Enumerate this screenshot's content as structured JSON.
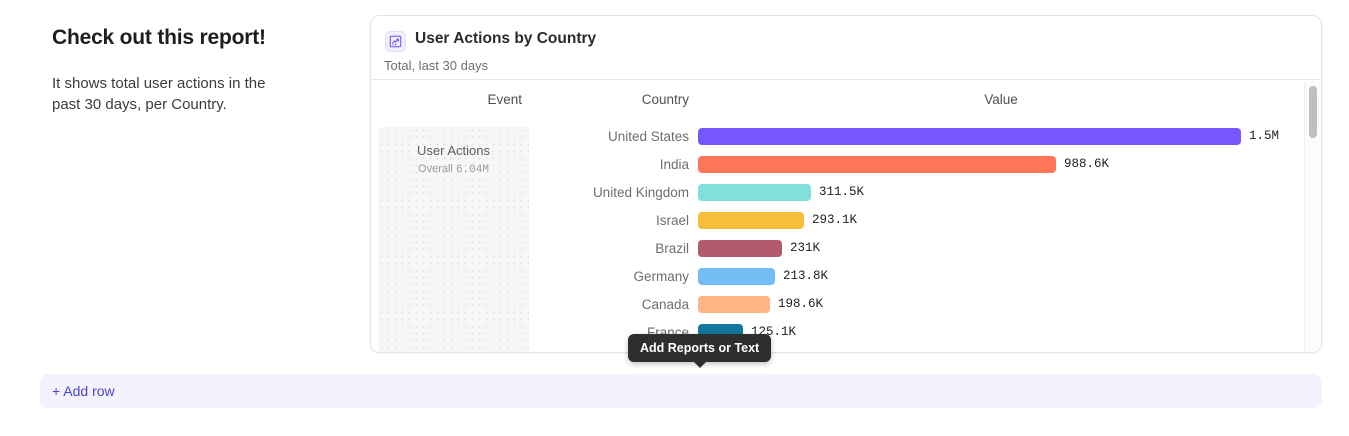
{
  "intro": {
    "heading": "Check out this report!",
    "description": "It shows total user actions in the past 30 days, per Country."
  },
  "card": {
    "title": "User Actions by Country",
    "subtitle": "Total, last 30 days",
    "icon": "insights-chart-icon",
    "columns": {
      "event": "Event",
      "country": "Country",
      "value": "Value"
    },
    "event_panel": {
      "name": "User Actions",
      "overall_label": "Overall",
      "overall_value": "6.04M"
    }
  },
  "chart_data": {
    "type": "bar",
    "orientation": "horizontal",
    "title": "User Actions by Country",
    "subtitle": "Total, last 30 days",
    "event": "User Actions",
    "overall_total": "6.04M",
    "categories": [
      "United States",
      "India",
      "United Kingdom",
      "Israel",
      "Brazil",
      "Germany",
      "Canada",
      "France"
    ],
    "values": [
      1500000,
      988600,
      311500,
      293100,
      231000,
      213800,
      198600,
      125100
    ],
    "value_labels": [
      "1.5M",
      "988.6K",
      "311.5K",
      "293.1K",
      "231K",
      "213.8K",
      "198.6K",
      "125.1K"
    ],
    "bar_colors": [
      "#7856FF",
      "#FF7557",
      "#80E1D9",
      "#F6BE3B",
      "#B25A6D",
      "#74BEF5",
      "#FFB583",
      "#12789E"
    ],
    "xlim": [
      0,
      1500000
    ],
    "legend": "none",
    "grid": "off"
  },
  "tooltip": {
    "text": "Add Reports or Text"
  },
  "add_row": {
    "label": "+ Add row"
  },
  "colors": {
    "accent_purple": "#7856FF",
    "link_purple": "#4B45C8",
    "add_row_bg": "#F4F2FC",
    "tooltip_bg": "#2E2E2E",
    "card_border": "#E4E4E4"
  }
}
